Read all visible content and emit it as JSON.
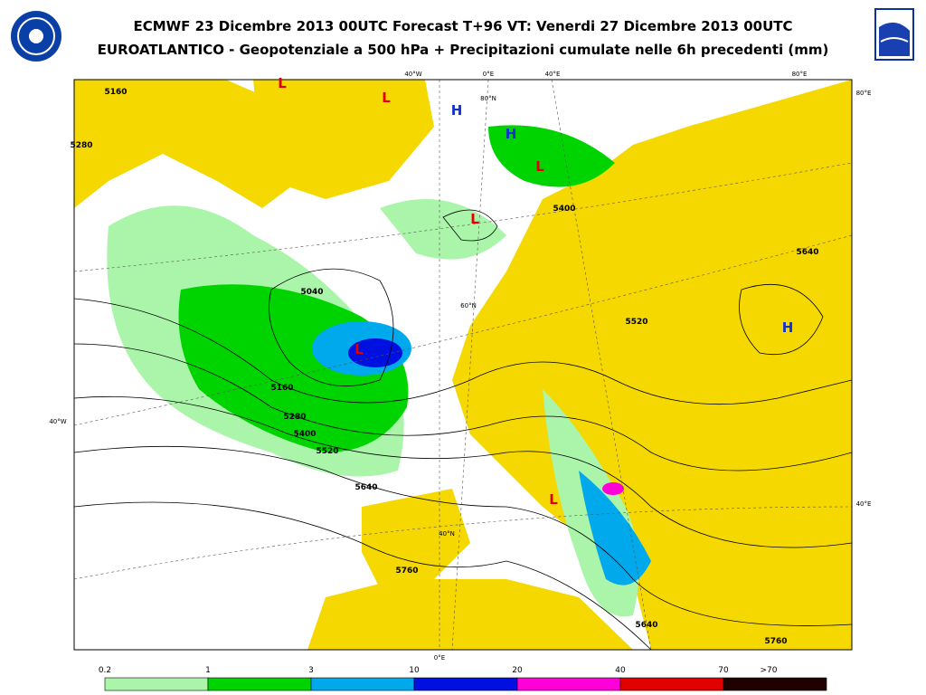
{
  "header": {
    "line1": "ECMWF 23 Dicembre 2013 00UTC Forecast T+96 VT: Venerdi 27 Dicembre 2013 00UTC",
    "line2": "EUROATLANTICO - Geopotenziale a 500 hPa + Precipitazioni cumulate nelle 6h precedenti (mm)"
  },
  "map": {
    "grid_labels": [
      "40°W",
      "0°E",
      "40°E",
      "80°E",
      "80°E",
      "40°W",
      "40°E",
      "0°E",
      "80°N",
      "60°N",
      "40°N"
    ],
    "labels": [
      "L",
      "L",
      "H",
      "H",
      "L",
      "L",
      "L",
      "H",
      "L",
      "5160",
      "5280",
      "5040",
      "5160",
      "5280",
      "5400",
      "5520",
      "5640",
      "5760",
      "5640",
      "5760",
      "5400",
      "5520",
      "5640"
    ]
  },
  "legend": {
    "labels": [
      "0.2",
      "1",
      "3",
      "10",
      "20",
      "40",
      "70",
      ">70"
    ],
    "colors": [
      "#aaf5aa",
      "#00d400",
      "#00a8ec",
      "#0010e0",
      "#ff00d8",
      "#e00000",
      "#200000"
    ]
  }
}
